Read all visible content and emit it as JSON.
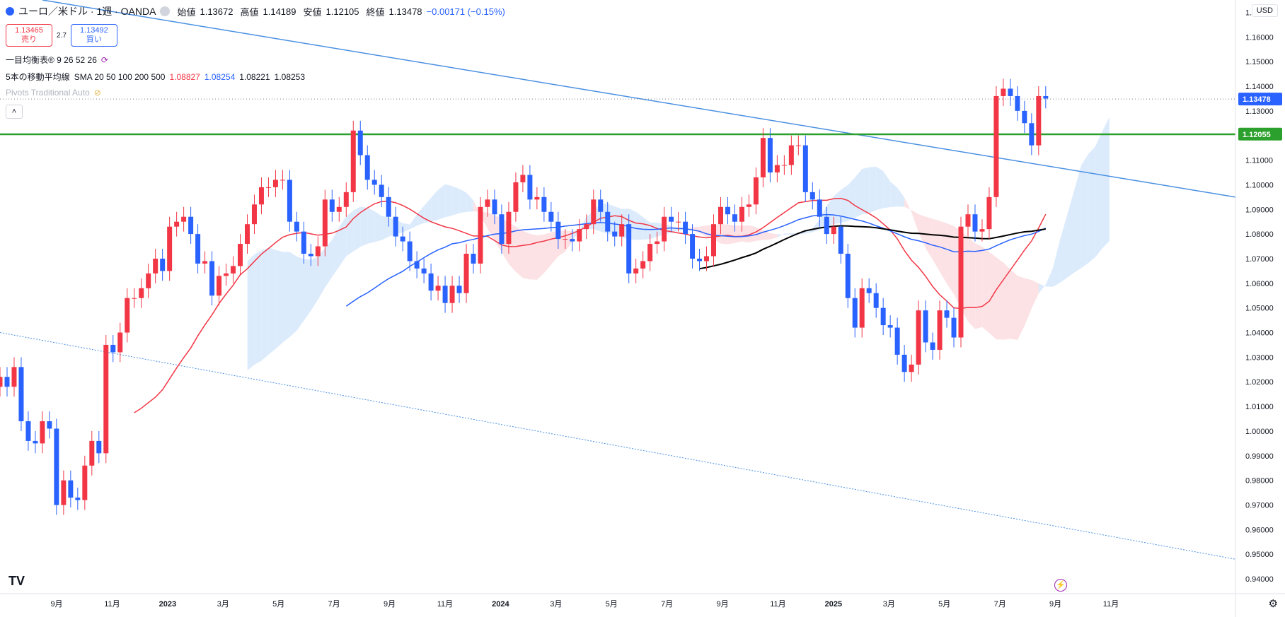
{
  "header": {
    "title": "ユーロ／米ドル · 1週 · OANDA",
    "ohlc": [
      {
        "label": "始値",
        "value": "1.13672"
      },
      {
        "label": "高値",
        "value": "1.14189"
      },
      {
        "label": "安値",
        "value": "1.12105"
      },
      {
        "label": "終値",
        "value": "1.13478"
      }
    ],
    "change": "−0.00171 (−0.15%)",
    "currency": "USD"
  },
  "trade": {
    "sell_price": "1.13465",
    "sell_label": "売り",
    "spread": "2.7",
    "buy_price": "1.13492",
    "buy_label": "買い"
  },
  "indicators": {
    "ichimoku": "一目均衡表® 9 26 52 26",
    "ma_title": "5本の移動平均線",
    "ma_params": "SMA 20 50 100 200 500",
    "ma_values": [
      "1.08827",
      "1.08254",
      "1.08221",
      "1.08253"
    ],
    "pivots": "Pivots Traditional Auto"
  },
  "colors": {
    "up": "#f23645",
    "down": "#2962ff",
    "sma20": "#f23645",
    "sma50": "#2962ff",
    "sma200": "#000000",
    "sma500": "#3b3b3b",
    "horizontal_level": "#2ca02c",
    "trendline": "#4a90e2",
    "cloud_bull": "#d6e8fb",
    "cloud_bear": "#fbdde0"
  },
  "chart_data": {
    "type": "candlestick",
    "symbol": "EUR/USD",
    "interval": "1W",
    "y_axis_ticks": [
      "1.17000",
      "1.16000",
      "1.15000",
      "1.14000",
      "1.13000",
      "1.12000",
      "1.11000",
      "1.10000",
      "1.09000",
      "1.08000",
      "1.07000",
      "1.06000",
      "1.05000",
      "1.04000",
      "1.03000",
      "1.02000",
      "1.01000",
      "1.00000",
      "0.99000",
      "0.98000",
      "0.97000",
      "0.96000",
      "0.95000",
      "0.94000"
    ],
    "ylim": [
      0.934,
      1.175
    ],
    "x_axis_ticks": [
      "9月",
      "11月",
      "2023",
      "3月",
      "5月",
      "7月",
      "9月",
      "11月",
      "2024",
      "3月",
      "5月",
      "7月",
      "9月",
      "11月",
      "2025",
      "3月",
      "5月",
      "7月",
      "9月",
      "11月"
    ],
    "x_range": [
      "2022-07-25",
      "2025-11-30"
    ],
    "last_price_label": "1.13478",
    "horizontal_level_label": "1.12055",
    "horizontal_level": 1.1205,
    "weekly_closes": [
      [
        "2022-07-25",
        1.022
      ],
      [
        "2022-08-01",
        1.018
      ],
      [
        "2022-08-08",
        1.026
      ],
      [
        "2022-08-15",
        1.004
      ],
      [
        "2022-08-22",
        0.996
      ],
      [
        "2022-08-29",
        0.995
      ],
      [
        "2022-09-05",
        1.004
      ],
      [
        "2022-09-12",
        1.001
      ],
      [
        "2022-09-19",
        0.97
      ],
      [
        "2022-09-26",
        0.98
      ],
      [
        "2022-10-03",
        0.973
      ],
      [
        "2022-10-10",
        0.972
      ],
      [
        "2022-10-17",
        0.986
      ],
      [
        "2022-10-24",
        0.996
      ],
      [
        "2022-10-31",
        0.991
      ],
      [
        "2022-11-07",
        1.035
      ],
      [
        "2022-11-14",
        1.032
      ],
      [
        "2022-11-21",
        1.04
      ],
      [
        "2022-11-28",
        1.054
      ],
      [
        "2022-12-05",
        1.054
      ],
      [
        "2022-12-12",
        1.058
      ],
      [
        "2022-12-19",
        1.064
      ],
      [
        "2022-12-26",
        1.07
      ],
      [
        "2023-01-02",
        1.065
      ],
      [
        "2023-01-09",
        1.083
      ],
      [
        "2023-01-16",
        1.085
      ],
      [
        "2023-01-23",
        1.087
      ],
      [
        "2023-01-30",
        1.08
      ],
      [
        "2023-02-06",
        1.068
      ],
      [
        "2023-02-13",
        1.069
      ],
      [
        "2023-02-20",
        1.055
      ],
      [
        "2023-02-27",
        1.063
      ],
      [
        "2023-03-06",
        1.064
      ],
      [
        "2023-03-13",
        1.067
      ],
      [
        "2023-03-20",
        1.076
      ],
      [
        "2023-03-27",
        1.084
      ],
      [
        "2023-04-03",
        1.092
      ],
      [
        "2023-04-10",
        1.099
      ],
      [
        "2023-04-17",
        1.099
      ],
      [
        "2023-04-24",
        1.102
      ],
      [
        "2023-05-01",
        1.102
      ],
      [
        "2023-05-08",
        1.085
      ],
      [
        "2023-05-15",
        1.081
      ],
      [
        "2023-05-22",
        1.072
      ],
      [
        "2023-05-29",
        1.071
      ],
      [
        "2023-06-05",
        1.075
      ],
      [
        "2023-06-12",
        1.094
      ],
      [
        "2023-06-19",
        1.089
      ],
      [
        "2023-06-26",
        1.091
      ],
      [
        "2023-07-03",
        1.097
      ],
      [
        "2023-07-10",
        1.122
      ],
      [
        "2023-07-17",
        1.112
      ],
      [
        "2023-07-24",
        1.102
      ],
      [
        "2023-07-31",
        1.1
      ],
      [
        "2023-08-07",
        1.095
      ],
      [
        "2023-08-14",
        1.087
      ],
      [
        "2023-08-21",
        1.079
      ],
      [
        "2023-08-28",
        1.077
      ],
      [
        "2023-09-04",
        1.069
      ],
      [
        "2023-09-11",
        1.066
      ],
      [
        "2023-09-18",
        1.064
      ],
      [
        "2023-09-25",
        1.057
      ],
      [
        "2023-10-02",
        1.059
      ],
      [
        "2023-10-09",
        1.052
      ],
      [
        "2023-10-16",
        1.059
      ],
      [
        "2023-10-23",
        1.056
      ],
      [
        "2023-10-30",
        1.072
      ],
      [
        "2023-11-06",
        1.068
      ],
      [
        "2023-11-13",
        1.091
      ],
      [
        "2023-11-20",
        1.094
      ],
      [
        "2023-11-27",
        1.088
      ],
      [
        "2023-12-04",
        1.076
      ],
      [
        "2023-12-11",
        1.089
      ],
      [
        "2023-12-18",
        1.101
      ],
      [
        "2023-12-25",
        1.104
      ],
      [
        "2024-01-01",
        1.094
      ],
      [
        "2024-01-08",
        1.095
      ],
      [
        "2024-01-15",
        1.089
      ],
      [
        "2024-01-22",
        1.085
      ],
      [
        "2024-01-29",
        1.078
      ],
      [
        "2024-02-05",
        1.078
      ],
      [
        "2024-02-12",
        1.077
      ],
      [
        "2024-02-19",
        1.082
      ],
      [
        "2024-02-26",
        1.084
      ],
      [
        "2024-03-04",
        1.094
      ],
      [
        "2024-03-11",
        1.089
      ],
      [
        "2024-03-18",
        1.081
      ],
      [
        "2024-03-25",
        1.079
      ],
      [
        "2024-04-01",
        1.084
      ],
      [
        "2024-04-08",
        1.064
      ],
      [
        "2024-04-15",
        1.066
      ],
      [
        "2024-04-22",
        1.069
      ],
      [
        "2024-04-29",
        1.076
      ],
      [
        "2024-05-06",
        1.077
      ],
      [
        "2024-05-13",
        1.087
      ],
      [
        "2024-05-20",
        1.085
      ],
      [
        "2024-05-27",
        1.085
      ],
      [
        "2024-06-03",
        1.08
      ],
      [
        "2024-06-10",
        1.07
      ],
      [
        "2024-06-17",
        1.069
      ],
      [
        "2024-06-24",
        1.071
      ],
      [
        "2024-07-01",
        1.084
      ],
      [
        "2024-07-08",
        1.091
      ],
      [
        "2024-07-15",
        1.088
      ],
      [
        "2024-07-22",
        1.085
      ],
      [
        "2024-07-29",
        1.091
      ],
      [
        "2024-08-05",
        1.092
      ],
      [
        "2024-08-12",
        1.103
      ],
      [
        "2024-08-19",
        1.119
      ],
      [
        "2024-08-26",
        1.105
      ],
      [
        "2024-09-02",
        1.108
      ],
      [
        "2024-09-09",
        1.108
      ],
      [
        "2024-09-16",
        1.116
      ],
      [
        "2024-09-23",
        1.116
      ],
      [
        "2024-09-30",
        1.097
      ],
      [
        "2024-10-07",
        1.094
      ],
      [
        "2024-10-14",
        1.087
      ],
      [
        "2024-10-21",
        1.08
      ],
      [
        "2024-10-28",
        1.083
      ],
      [
        "2024-11-04",
        1.072
      ],
      [
        "2024-11-11",
        1.054
      ],
      [
        "2024-11-18",
        1.042
      ],
      [
        "2024-11-25",
        1.058
      ],
      [
        "2024-12-02",
        1.056
      ],
      [
        "2024-12-09",
        1.05
      ],
      [
        "2024-12-16",
        1.043
      ],
      [
        "2024-12-23",
        1.042
      ],
      [
        "2024-12-30",
        1.031
      ],
      [
        "2025-01-06",
        1.024
      ],
      [
        "2025-01-13",
        1.027
      ],
      [
        "2025-01-20",
        1.049
      ],
      [
        "2025-01-27",
        1.036
      ],
      [
        "2025-02-03",
        1.033
      ],
      [
        "2025-02-10",
        1.049
      ],
      [
        "2025-02-17",
        1.046
      ],
      [
        "2025-02-24",
        1.038
      ],
      [
        "2025-03-03",
        1.083
      ],
      [
        "2025-03-10",
        1.088
      ],
      [
        "2025-03-17",
        1.081
      ],
      [
        "2025-03-24",
        1.082
      ],
      [
        "2025-03-31",
        1.095
      ],
      [
        "2025-04-07",
        1.136
      ],
      [
        "2025-04-14",
        1.139
      ],
      [
        "2025-04-21",
        1.136
      ],
      [
        "2025-04-28",
        1.13
      ],
      [
        "2025-05-05",
        1.125
      ],
      [
        "2025-05-12",
        1.116
      ],
      [
        "2025-05-19",
        1.136
      ],
      [
        "2025-05-26",
        1.135
      ]
    ]
  }
}
